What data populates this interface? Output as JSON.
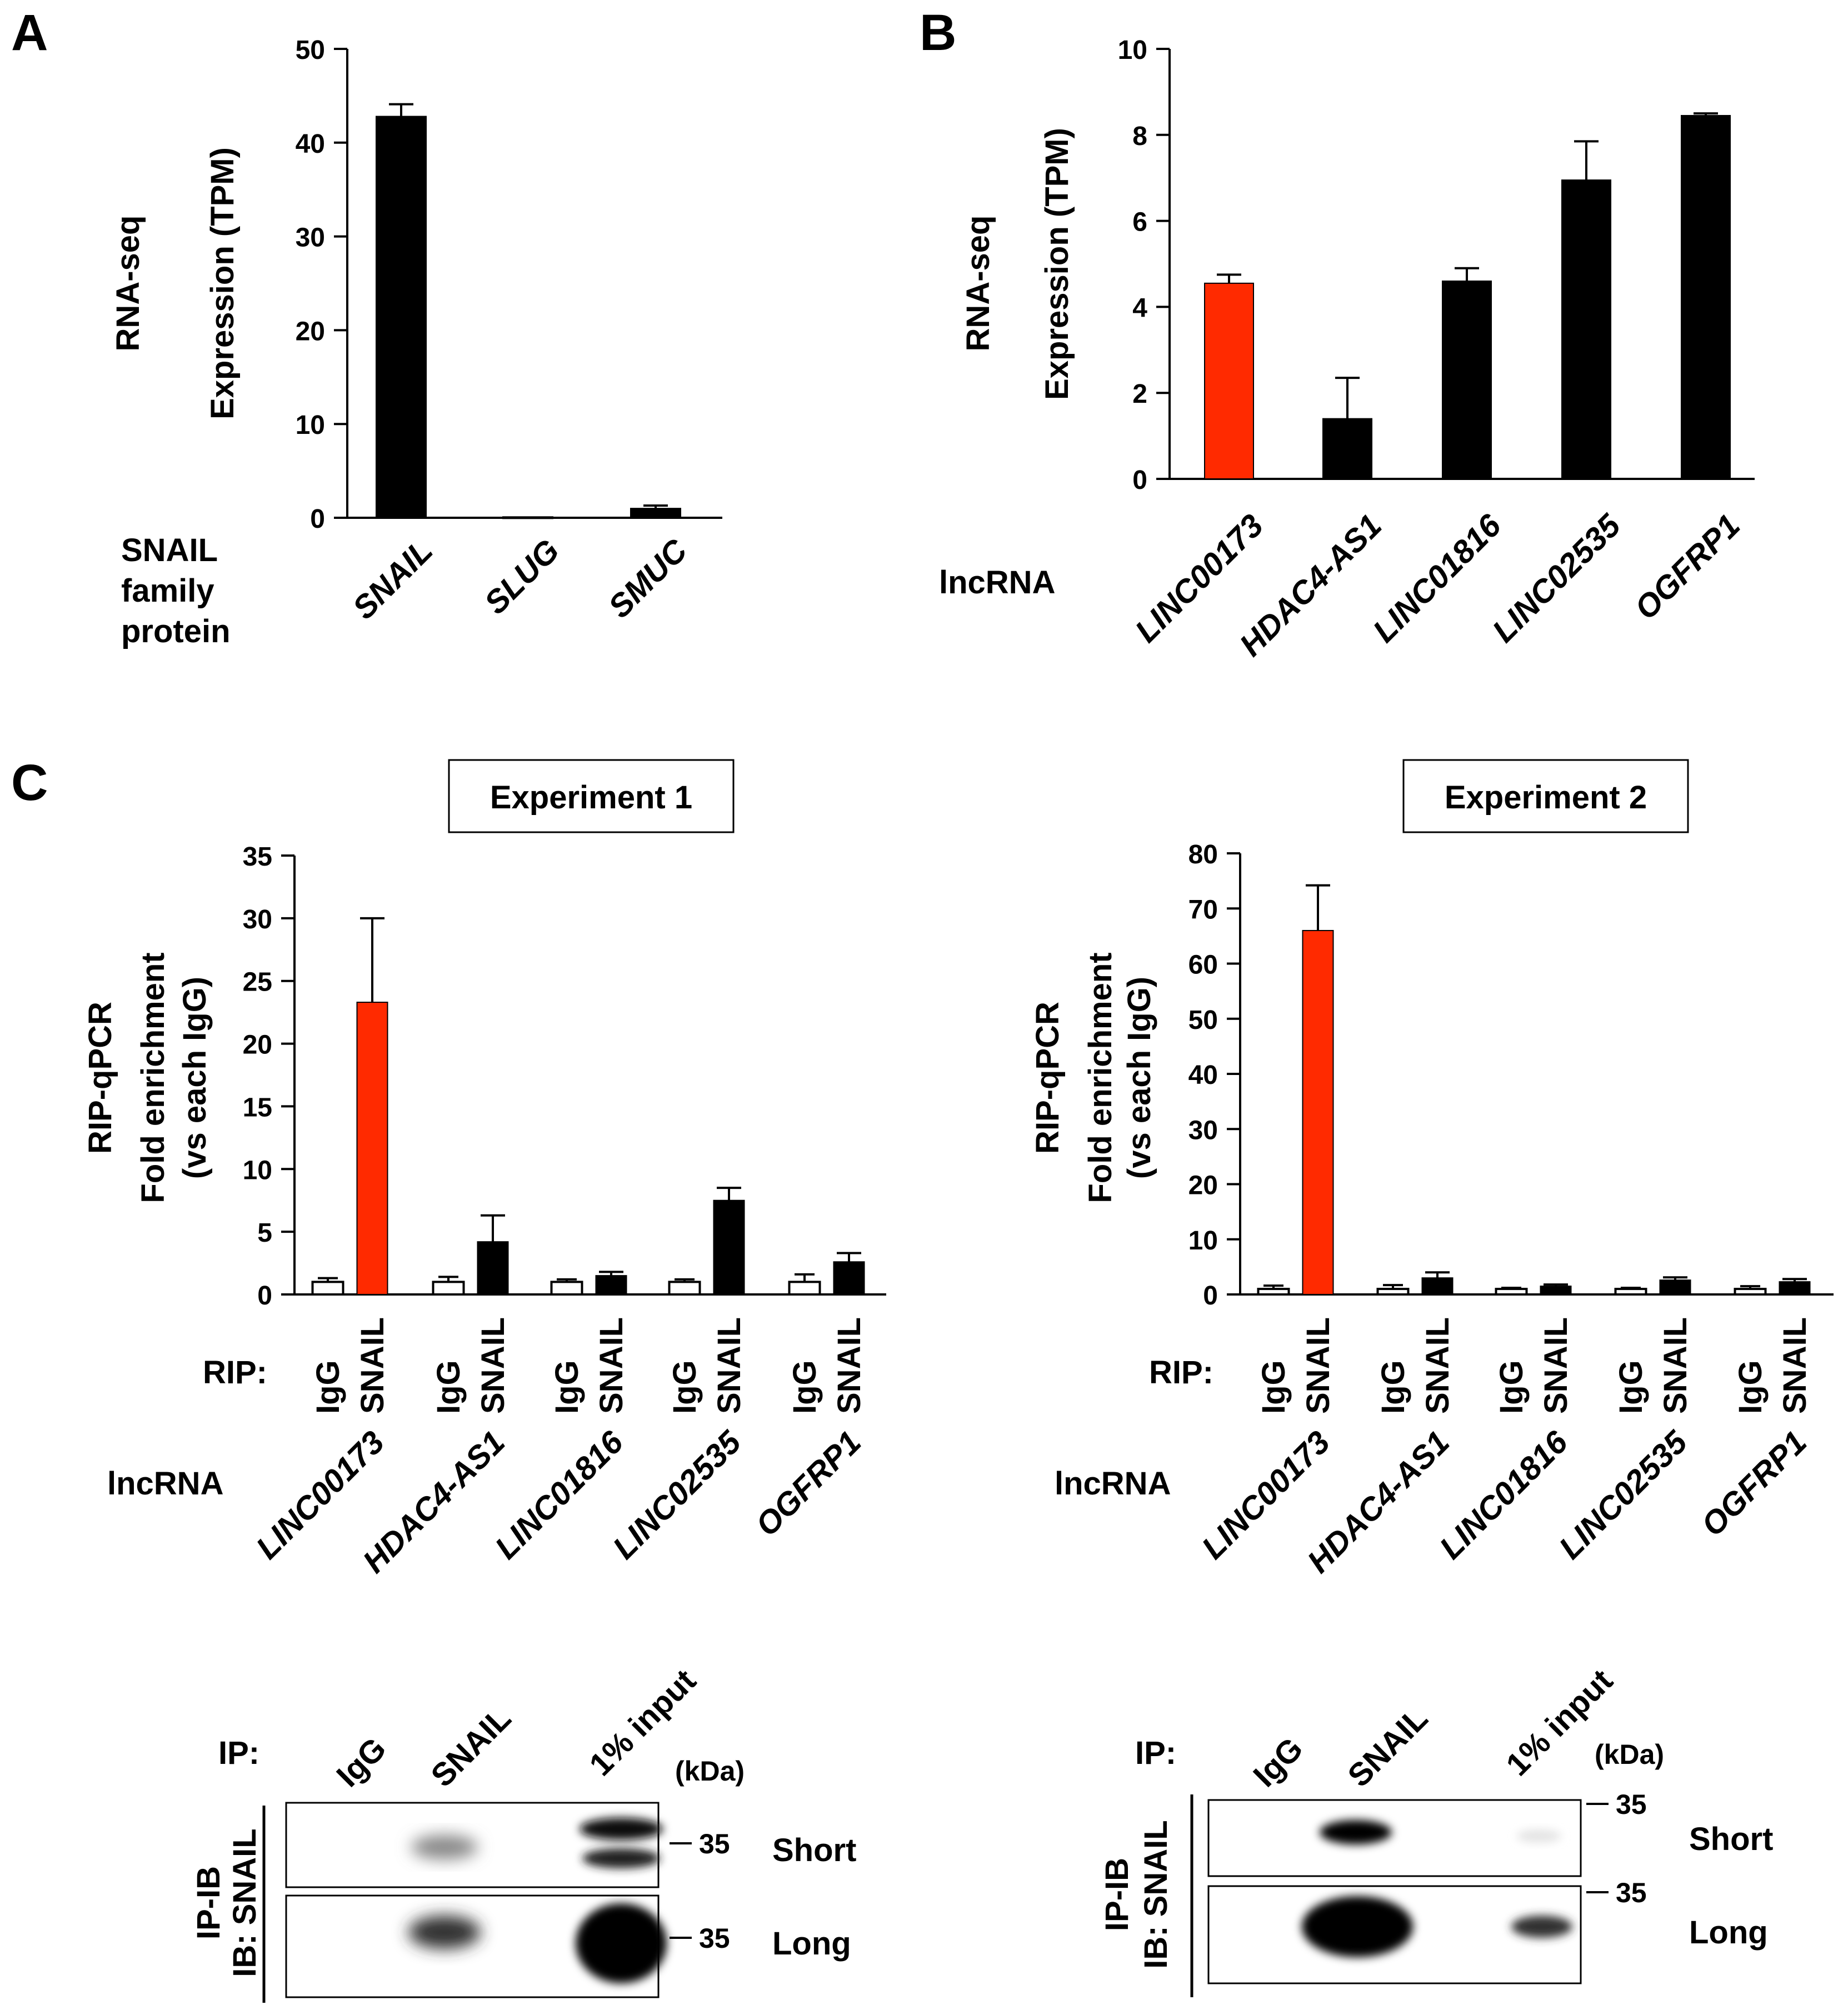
{
  "colors": {
    "red": "#ff2a00",
    "black": "#000000",
    "white": "#ffffff"
  },
  "panels": {
    "A": "A",
    "B": "B",
    "C": "C"
  },
  "chart_data": [
    {
      "id": "A",
      "type": "bar",
      "ylabel": [
        "RNA-seq",
        "Expression (TPM)"
      ],
      "ylim": [
        0,
        50
      ],
      "yticks": [
        0,
        10,
        20,
        30,
        40,
        50
      ],
      "group_label": [
        "SNAIL",
        "family",
        "protein"
      ],
      "categories": [
        "SNAIL",
        "SLUG",
        "SMUC"
      ],
      "values": [
        42.8,
        0.1,
        1.0
      ],
      "errors": [
        1.3,
        0.0,
        0.3
      ],
      "colors": [
        "#000000",
        "#000000",
        "#000000"
      ]
    },
    {
      "id": "B",
      "type": "bar",
      "ylabel": [
        "RNA-seq",
        "Expression (TPM)"
      ],
      "ylim": [
        0,
        10
      ],
      "yticks": [
        0,
        2,
        4,
        6,
        8,
        10
      ],
      "group_label": [
        "lncRNA"
      ],
      "categories": [
        "LINC00173",
        "HDAC4-AS1",
        "LINC01816",
        "LINC02535",
        "OGFRP1"
      ],
      "values": [
        4.55,
        1.4,
        4.6,
        6.95,
        8.45
      ],
      "errors": [
        0.2,
        0.95,
        0.3,
        0.9,
        0.05
      ],
      "colors": [
        "#ff2a00",
        "#000000",
        "#000000",
        "#000000",
        "#000000"
      ]
    },
    {
      "id": "C1",
      "type": "bar",
      "title": "Experiment 1",
      "ylabel": [
        "RIP-qPCR",
        "Fold enrichment",
        "(vs each IgG)"
      ],
      "ylim": [
        0,
        35
      ],
      "yticks": [
        0,
        5,
        10,
        15,
        20,
        25,
        30,
        35
      ],
      "rip_label": "RIP:",
      "series_names": [
        "IgG",
        "SNAIL"
      ],
      "group_label": [
        "lncRNA"
      ],
      "categories": [
        "LINC00173",
        "HDAC4-AS1",
        "LINC01816",
        "LINC02535",
        "OGFRP1"
      ],
      "series": [
        {
          "name": "IgG",
          "values": [
            1.0,
            1.0,
            1.0,
            1.0,
            1.0
          ],
          "errors": [
            0.3,
            0.4,
            0.2,
            0.2,
            0.6
          ]
        },
        {
          "name": "SNAIL",
          "values": [
            23.3,
            4.2,
            1.5,
            7.5,
            2.6
          ],
          "errors": [
            6.7,
            2.1,
            0.3,
            1.0,
            0.7
          ]
        }
      ],
      "snail_colors": [
        "#ff2a00",
        "#000000",
        "#000000",
        "#000000",
        "#000000"
      ]
    },
    {
      "id": "C2",
      "type": "bar",
      "title": "Experiment 2",
      "ylabel": [
        "RIP-qPCR",
        "Fold enrichment",
        "(vs each IgG)"
      ],
      "ylim": [
        0,
        80
      ],
      "yticks": [
        0,
        10,
        20,
        30,
        40,
        50,
        60,
        70,
        80
      ],
      "rip_label": "RIP:",
      "series_names": [
        "IgG",
        "SNAIL"
      ],
      "group_label": [
        "lncRNA"
      ],
      "categories": [
        "LINC00173",
        "HDAC4-AS1",
        "LINC01816",
        "LINC02535",
        "OGFRP1"
      ],
      "series": [
        {
          "name": "IgG",
          "values": [
            1.0,
            1.0,
            1.0,
            1.0,
            1.0
          ],
          "errors": [
            0.6,
            0.7,
            0.2,
            0.2,
            0.5
          ]
        },
        {
          "name": "SNAIL",
          "values": [
            66.0,
            3.0,
            1.5,
            2.6,
            2.3
          ],
          "errors": [
            8.2,
            1.0,
            0.3,
            0.5,
            0.5
          ]
        }
      ],
      "snail_colors": [
        "#ff2a00",
        "#000000",
        "#000000",
        "#000000",
        "#000000"
      ]
    }
  ],
  "blots": [
    {
      "ip_label": "IP:",
      "lanes": [
        "IgG",
        "SNAIL",
        "1% input"
      ],
      "unit": "(kDa)",
      "side_label": [
        "IP-IB",
        "IB: SNAIL"
      ],
      "exposures": [
        "Short",
        "Long"
      ],
      "marker": "35"
    },
    {
      "ip_label": "IP:",
      "lanes": [
        "IgG",
        "SNAIL",
        "1% input"
      ],
      "unit": "(kDa)",
      "side_label": [
        "IP-IB",
        "IB: SNAIL"
      ],
      "exposures": [
        "Short",
        "Long"
      ],
      "marker": "35"
    }
  ]
}
